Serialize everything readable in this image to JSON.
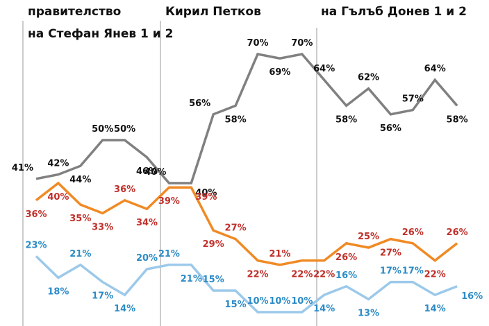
{
  "chart_data": {
    "type": "line",
    "periods": [
      {
        "lines": [
          "правителство",
          "на Стефан Янев 1 и 2"
        ]
      },
      {
        "lines": [
          "Кирил Петков"
        ]
      },
      {
        "lines": [
          "на Гълъб Донев 1 и 2"
        ]
      }
    ],
    "x": [
      0,
      1,
      2,
      3,
      4,
      5,
      6,
      7,
      8,
      9,
      10,
      11,
      12,
      13,
      14,
      15,
      16,
      17,
      18,
      19
    ],
    "series": [
      {
        "color": "#808080",
        "label_color": "#111111",
        "values": [
          41,
          42,
          44,
          50,
          50,
          46,
          40,
          40,
          56,
          58,
          70,
          69,
          70,
          64,
          58,
          62,
          56,
          57,
          64,
          58
        ],
        "labels": [
          "41%",
          "42%",
          "44%",
          "50%",
          "50%",
          "46%",
          "40%",
          "40%",
          "56%",
          "58%",
          "70%",
          "69%",
          "70%",
          "64%",
          "58%",
          "62%",
          "56%",
          "57%",
          "64%",
          "58%"
        ]
      },
      {
        "color": "#F08A24",
        "label_color": "#C0302A",
        "values": [
          36,
          40,
          35,
          33,
          36,
          34,
          39,
          39,
          29,
          27,
          22,
          21,
          22,
          22,
          26,
          25,
          27,
          26,
          22,
          26
        ],
        "labels": [
          "36%",
          "40%",
          "35%",
          "33%",
          "36%",
          "34%",
          "39%",
          "39%",
          "29%",
          "27%",
          "22%",
          "21%",
          "22%",
          "22%",
          "26%",
          "25%",
          "27%",
          "26%",
          "22%",
          "26%"
        ]
      },
      {
        "color": "#9CC9EA",
        "label_color": "#2C8BC6",
        "values": [
          23,
          18,
          21,
          17,
          14,
          20,
          21,
          21,
          15,
          15,
          10,
          10,
          10,
          14,
          16,
          13,
          17,
          17,
          14,
          16
        ],
        "labels": [
          "23%",
          "18%",
          "21%",
          "17%",
          "14%",
          "20%",
          "21%",
          "21%",
          "15%",
          "15%",
          "10%",
          "10%",
          "10%",
          "14%",
          "16%",
          "13%",
          "17%",
          "17%",
          "14%",
          "16%"
        ]
      }
    ]
  }
}
